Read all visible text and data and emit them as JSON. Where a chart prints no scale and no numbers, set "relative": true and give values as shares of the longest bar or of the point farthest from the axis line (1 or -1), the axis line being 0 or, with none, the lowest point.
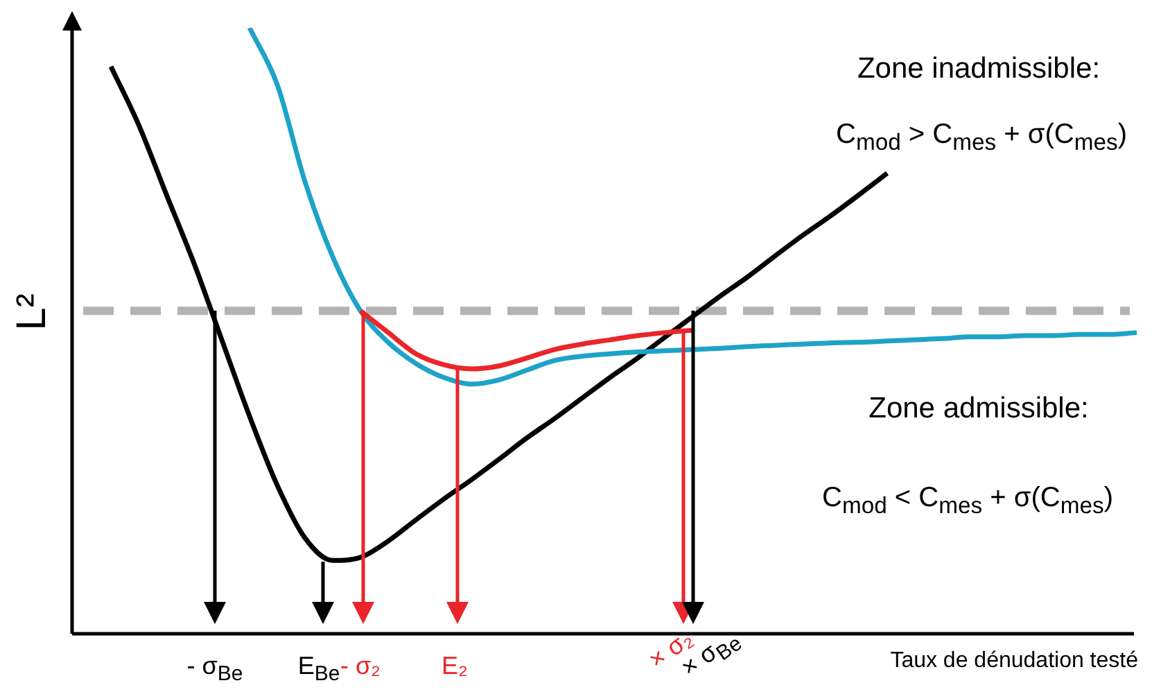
{
  "chart_data": {
    "type": "line",
    "relative": true,
    "xlabel": "Taux de dénudation testé",
    "ylabel": "L²",
    "categories": [
      null,
      null,
      null,
      null,
      null,
      null,
      null,
      null,
      null,
      null,
      null,
      null,
      null,
      null,
      null,
      null,
      null,
      null,
      null,
      null,
      null,
      null,
      null,
      null,
      null,
      null,
      null,
      null,
      null,
      null,
      null,
      null,
      null,
      null,
      null,
      null,
      null,
      null,
      null
    ],
    "series": [
      {
        "color": "#000000",
        "values": [
          null,
          0.936,
          0.84,
          0.725,
          0.611,
          0.485,
          0.359,
          0.245,
          0.158,
          0.121,
          0.126,
          0.153,
          0.188,
          0.222,
          0.254,
          0.288,
          0.323,
          0.355,
          0.389,
          0.423,
          0.455,
          0.49,
          0.524,
          0.558,
          0.59,
          0.625,
          0.659,
          0.691,
          0.725,
          0.76,
          null,
          null,
          null,
          null,
          null,
          null,
          null,
          null,
          null
        ]
      },
      {
        "color": "#1ea3c8",
        "values": [
          null,
          null,
          null,
          null,
          null,
          null,
          1,
          0.906,
          0.746,
          0.622,
          0.533,
          0.481,
          0.446,
          0.423,
          0.412,
          0.419,
          0.435,
          0.451,
          0.458,
          0.462,
          0.465,
          0.467,
          0.469,
          0.471,
          0.474,
          0.476,
          0.478,
          0.48,
          0.481,
          0.483,
          0.485,
          0.487,
          0.49,
          0.49,
          0.492,
          0.492,
          0.494,
          0.494,
          0.497
        ]
      },
      {
        "color": "#e8262b",
        "values": [
          null,
          null,
          null,
          null,
          null,
          null,
          null,
          null,
          null,
          null,
          0.533,
          0.497,
          0.462,
          0.444,
          0.437,
          0.442,
          0.455,
          0.469,
          0.478,
          0.485,
          0.492,
          0.497,
          0.501,
          null,
          null,
          null,
          null,
          null,
          null,
          null,
          null,
          null,
          null,
          null,
          null,
          null,
          null,
          null,
          null
        ]
      }
    ],
    "ref_lines": [
      {
        "axis": "y",
        "value": 0.533,
        "color": "#b3b3b3",
        "line_style": "dashed"
      }
    ],
    "annotations": [
      "- σ$_{Be}$",
      "E$_{Be}$",
      "- σ₂",
      "E₂",
      "× σ₂",
      "× σ$_{Be}$",
      "Zone inadmissible:",
      "C$_{mod}$ > C$_{mes}$ + σ(C$_{mes}$)",
      "Zone admissible:",
      "C$_{mod}$ < C$_{mes}$ + σ(C$_{mes}$)"
    ],
    "legend": false,
    "marker": "none",
    "line_style": "solid"
  }
}
